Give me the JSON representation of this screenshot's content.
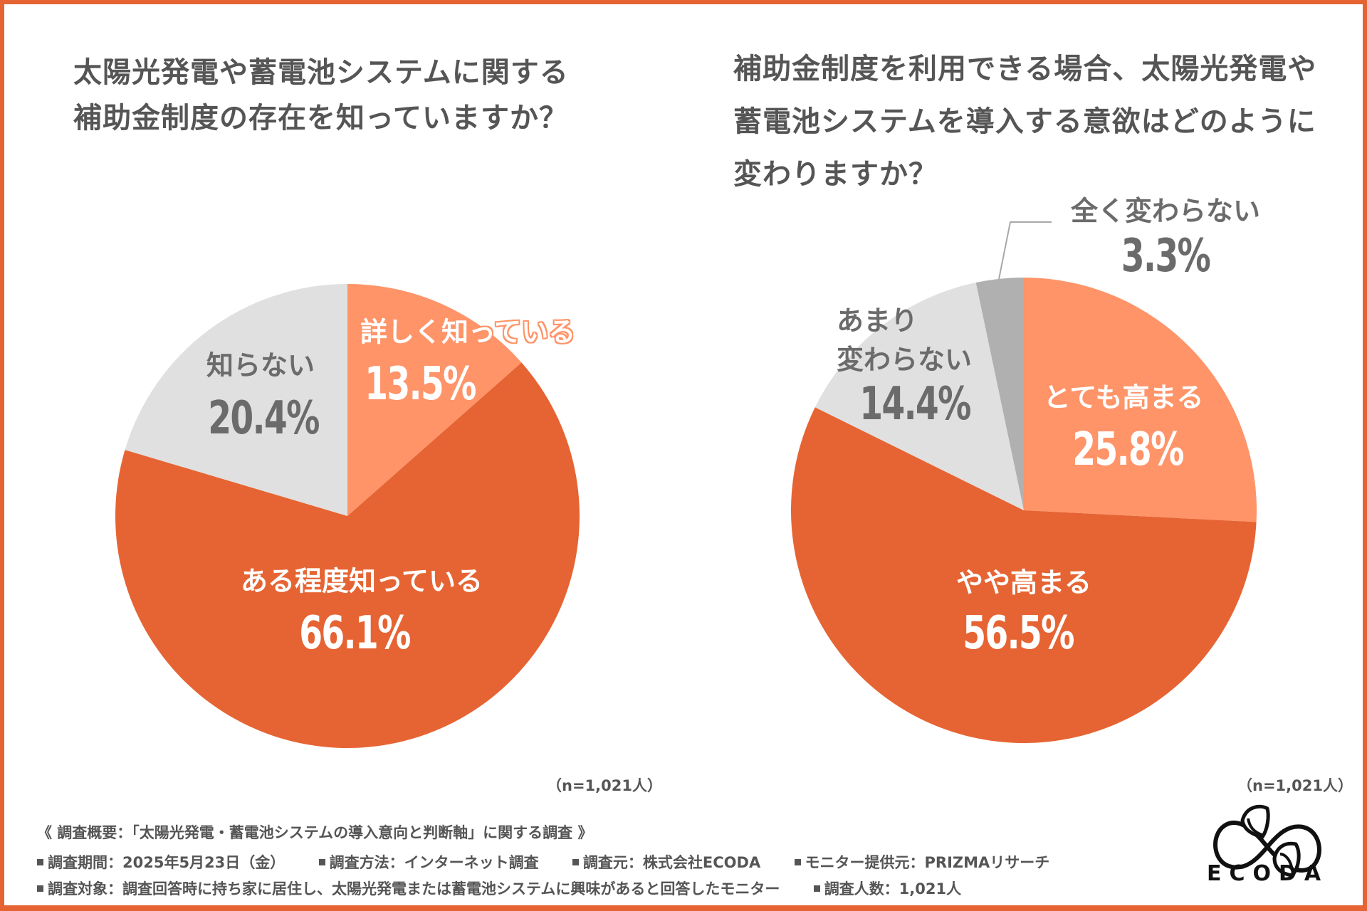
{
  "colors": {
    "frame": "#E66433",
    "orange": "#E66433",
    "salmon": "#FF9469",
    "light_gray": "#E0E0E0",
    "mid_gray": "#B0B0B0",
    "text_gray": "#555555",
    "label_gray": "#6b6b6b"
  },
  "chart_data": [
    {
      "type": "pie",
      "title": "太陽光発電や蓄電池システムに関する補助金制度の存在を知っていますか？",
      "title_lines": [
        "太陽光発電や蓄電池システムに関する",
        "補助金制度の存在を知っていますか？"
      ],
      "start": "top",
      "direction": "clockwise",
      "slices": [
        {
          "label": "詳しく知っている",
          "value": 13.5,
          "display": "13.5%",
          "color": "#FF9469"
        },
        {
          "label": "ある程度知っている",
          "value": 66.1,
          "display": "66.1%",
          "color": "#E66433"
        },
        {
          "label": "知らない",
          "value": 20.4,
          "display": "20.4%",
          "color": "#E0E0E0"
        }
      ],
      "sample": "（n=1,021人）"
    },
    {
      "type": "pie",
      "title": "補助金制度を利用できる場合、太陽光発電や蓄電池システムを導入する意欲はどのように変わりますか？",
      "title_lines": [
        "補助金制度を利用できる場合、太陽光発電や",
        "蓄電池システムを導入する意欲はどのように",
        "変わりますか？"
      ],
      "start": "top",
      "direction": "clockwise",
      "slices": [
        {
          "label": "とても高まる",
          "value": 25.8,
          "display": "25.8%",
          "color": "#FF9469"
        },
        {
          "label": "やや高まる",
          "value": 56.5,
          "display": "56.5%",
          "color": "#E66433"
        },
        {
          "label": "あまり変わらない",
          "label_lines": [
            "あまり",
            "変わらない"
          ],
          "value": 14.4,
          "display": "14.4%",
          "color": "#E0E0E0"
        },
        {
          "label": "全く変わらない",
          "value": 3.3,
          "display": "3.3%",
          "color": "#B0B0B0"
        }
      ],
      "sample": "（n=1,021人）"
    }
  ],
  "footer": {
    "heading": "《 調査概要：「太陽光発電・蓄電池システムの導入意向と判断軸」に関する調査 》",
    "row1": [
      "調査期間：2025年5月23日（金）",
      "調査方法：インターネット調査",
      "調査元：株式会社ECODA",
      "モニター提供元：PRIZMAリサーチ"
    ],
    "row2": [
      "調査対象：調査回答時に持ち家に居住し、太陽光発電または蓄電池システムに興味があると回答したモニター",
      "調査人数：1,021人"
    ]
  },
  "logo": {
    "text": "ECODA",
    "icon": "infinity-leaf-icon"
  }
}
